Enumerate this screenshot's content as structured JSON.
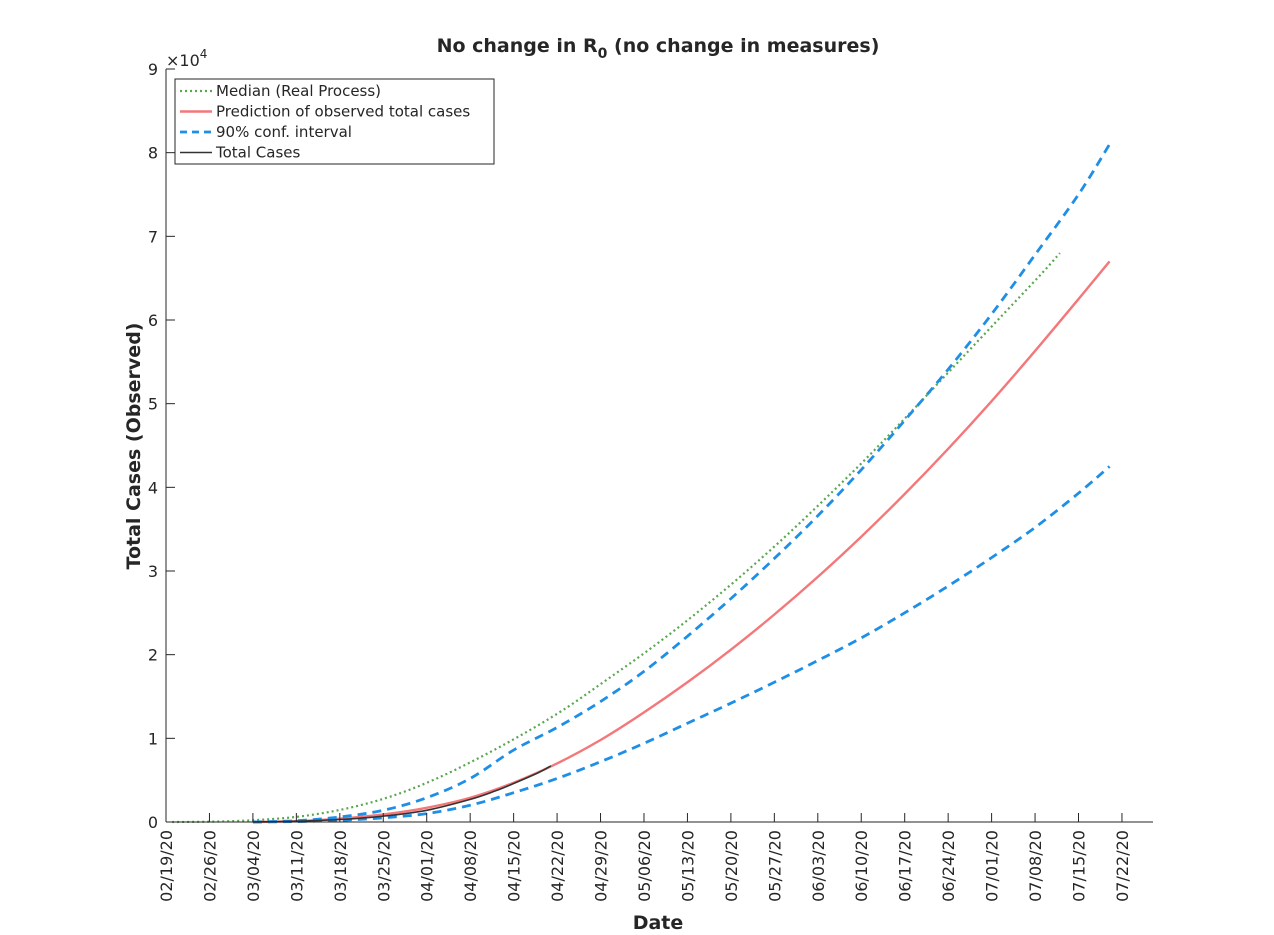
{
  "chart_data": {
    "type": "line",
    "title": "No change in R",
    "title_subscript": "0",
    "title_rest": " (no change in measures)",
    "xlabel": "Date",
    "ylabel": "Total Cases (Observed)",
    "y_exponent_label": "×10",
    "y_exponent": "4",
    "ylim": [
      0,
      90000
    ],
    "yticks": [
      0,
      10000,
      20000,
      30000,
      40000,
      50000,
      60000,
      70000,
      80000,
      90000
    ],
    "ytick_labels": [
      "0",
      "1",
      "2",
      "3",
      "4",
      "5",
      "6",
      "7",
      "8",
      "9"
    ],
    "xlim": [
      "2020-02-19",
      "2020-07-27"
    ],
    "xticks": [
      "2020-02-19",
      "2020-02-26",
      "2020-03-04",
      "2020-03-11",
      "2020-03-18",
      "2020-03-25",
      "2020-04-01",
      "2020-04-08",
      "2020-04-15",
      "2020-04-22",
      "2020-04-29",
      "2020-05-06",
      "2020-05-13",
      "2020-05-20",
      "2020-05-27",
      "2020-06-03",
      "2020-06-10",
      "2020-06-17",
      "2020-06-24",
      "2020-07-01",
      "2020-07-08",
      "2020-07-15",
      "2020-07-22"
    ],
    "xtick_labels": [
      "02/19/20",
      "02/26/20",
      "03/04/20",
      "03/11/20",
      "03/18/20",
      "03/25/20",
      "04/01/20",
      "04/08/20",
      "04/15/20",
      "04/22/20",
      "04/29/20",
      "05/06/20",
      "05/13/20",
      "05/20/20",
      "05/27/20",
      "06/03/20",
      "06/10/20",
      "06/17/20",
      "06/24/20",
      "07/01/20",
      "07/08/20",
      "07/15/20",
      "07/22/20"
    ],
    "grid": false,
    "legend_position": "top-left",
    "series": [
      {
        "name": "Median (Real Process)",
        "color": "#5aa750",
        "style": "dotted",
        "x": [
          "2020-02-20",
          "2020-02-27",
          "2020-03-05",
          "2020-03-12",
          "2020-03-19",
          "2020-03-26",
          "2020-04-02",
          "2020-04-09",
          "2020-04-16",
          "2020-04-23",
          "2020-04-30",
          "2020-05-07",
          "2020-05-14",
          "2020-05-21",
          "2020-05-28",
          "2020-06-04",
          "2020-06-11",
          "2020-06-18",
          "2020-06-25",
          "2020-07-02",
          "2020-07-09",
          "2020-07-12"
        ],
        "y": [
          0,
          50,
          250,
          700,
          1600,
          3000,
          5000,
          7500,
          10300,
          13400,
          17000,
          20700,
          24700,
          29000,
          33600,
          38500,
          43600,
          49000,
          54500,
          60000,
          65500,
          68000
        ]
      },
      {
        "name": "Prediction of observed total cases",
        "color": "#f4777a",
        "style": "solid",
        "x": [
          "2020-03-04",
          "2020-03-11",
          "2020-03-18",
          "2020-03-25",
          "2020-04-01",
          "2020-04-08",
          "2020-04-15",
          "2020-04-22",
          "2020-04-29",
          "2020-05-06",
          "2020-05-13",
          "2020-05-20",
          "2020-05-27",
          "2020-06-03",
          "2020-06-10",
          "2020-06-17",
          "2020-06-24",
          "2020-07-01",
          "2020-07-08",
          "2020-07-15",
          "2020-07-20"
        ],
        "y": [
          0,
          100,
          400,
          900,
          1700,
          2900,
          4700,
          7000,
          9800,
          13100,
          16700,
          20600,
          24800,
          29300,
          34100,
          39200,
          44600,
          50300,
          56300,
          62500,
          67000
        ]
      },
      {
        "name": "90% conf. interval",
        "color": "#1f8fe6",
        "style": "dashed",
        "x": [
          "2020-03-04",
          "2020-03-11",
          "2020-03-18",
          "2020-03-25",
          "2020-04-01",
          "2020-04-08",
          "2020-04-15",
          "2020-04-22",
          "2020-04-29",
          "2020-05-06",
          "2020-05-13",
          "2020-05-20",
          "2020-05-27",
          "2020-06-03",
          "2020-06-10",
          "2020-06-17",
          "2020-06-24",
          "2020-07-01",
          "2020-07-08",
          "2020-07-15",
          "2020-07-20"
        ],
        "y": [
          0,
          150,
          600,
          1400,
          2900,
          5200,
          8600,
          11300,
          14400,
          18000,
          22200,
          26700,
          31500,
          36600,
          42100,
          48000,
          54100,
          60700,
          67800,
          75000,
          81000
        ]
      },
      {
        "name": "",
        "color": "#1f8fe6",
        "style": "dashed",
        "x": [
          "2020-03-04",
          "2020-03-11",
          "2020-03-18",
          "2020-03-25",
          "2020-04-01",
          "2020-04-08",
          "2020-04-15",
          "2020-04-22",
          "2020-04-29",
          "2020-05-06",
          "2020-05-13",
          "2020-05-20",
          "2020-05-27",
          "2020-06-03",
          "2020-06-10",
          "2020-06-17",
          "2020-06-24",
          "2020-07-01",
          "2020-07-08",
          "2020-07-15",
          "2020-07-20"
        ],
        "y": [
          0,
          50,
          200,
          500,
          1000,
          2000,
          3500,
          5200,
          7200,
          9400,
          11800,
          14200,
          16700,
          19300,
          22000,
          25000,
          28200,
          31600,
          35200,
          39300,
          42500
        ]
      },
      {
        "name": "Total Cases",
        "color": "#333333",
        "style": "solid",
        "x": [
          "2020-03-04",
          "2020-03-11",
          "2020-03-18",
          "2020-03-25",
          "2020-04-01",
          "2020-04-08",
          "2020-04-12",
          "2020-04-15",
          "2020-04-19",
          "2020-04-21"
        ],
        "y": [
          0,
          100,
          300,
          700,
          1400,
          2700,
          3700,
          4600,
          5900,
          6700
        ]
      }
    ]
  }
}
